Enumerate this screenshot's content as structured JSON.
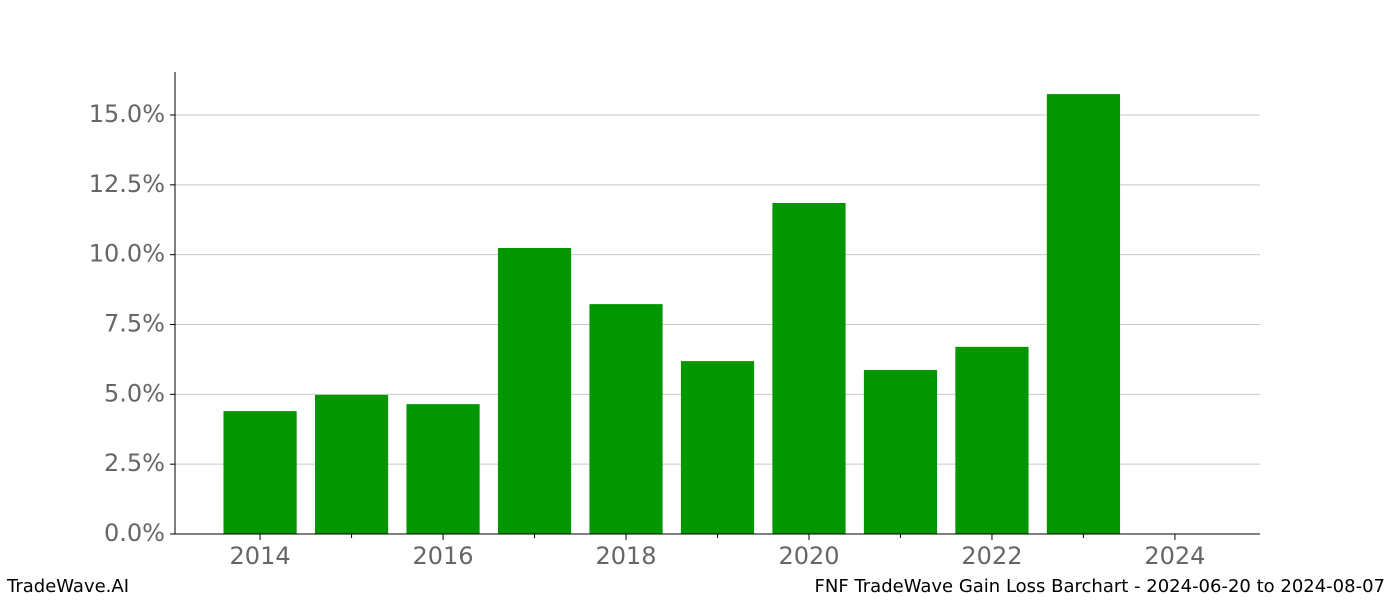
{
  "chart_data": {
    "type": "bar",
    "footer_left": "TradeWave.AI",
    "footer_right": "FNF TradeWave Gain Loss Barchart - 2024-06-20 to 2024-08-07",
    "x": [
      2014,
      2015,
      2016,
      2017,
      2018,
      2019,
      2020,
      2021,
      2022,
      2023
    ],
    "values": [
      4.4,
      4.98,
      4.65,
      10.24,
      8.23,
      6.19,
      11.85,
      5.87,
      6.7,
      15.75
    ],
    "color": "#029702",
    "bar_width": 0.8,
    "xlim": [
      2013.07,
      2024.93
    ],
    "xticks": [
      2014,
      2016,
      2018,
      2020,
      2022,
      2024
    ],
    "xminorticks": [
      2015,
      2017,
      2019,
      2021,
      2023
    ],
    "ylim": [
      0,
      16.54
    ],
    "yticks": [
      {
        "value": 0,
        "label": "0.0%"
      },
      {
        "value": 2.5,
        "label": "2.5%"
      },
      {
        "value": 5,
        "label": "5.0%"
      },
      {
        "value": 7.5,
        "label": "7.5%"
      },
      {
        "value": 10,
        "label": "10.0%"
      },
      {
        "value": 12.5,
        "label": "12.5%"
      },
      {
        "value": 15,
        "label": "15.0%"
      }
    ],
    "grid": true
  }
}
